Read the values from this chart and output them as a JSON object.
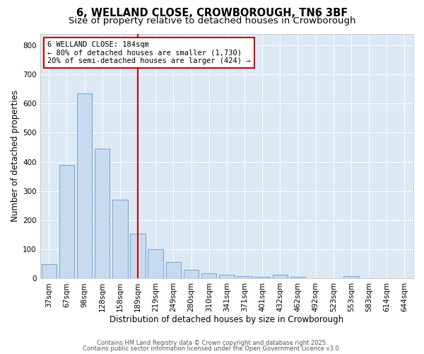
{
  "title": "6, WELLAND CLOSE, CROWBOROUGH, TN6 3BF",
  "subtitle": "Size of property relative to detached houses in Crowborough",
  "xlabel": "Distribution of detached houses by size in Crowborough",
  "ylabel": "Number of detached properties",
  "categories": [
    "37sqm",
    "67sqm",
    "98sqm",
    "128sqm",
    "158sqm",
    "189sqm",
    "219sqm",
    "249sqm",
    "280sqm",
    "310sqm",
    "341sqm",
    "371sqm",
    "401sqm",
    "432sqm",
    "462sqm",
    "492sqm",
    "523sqm",
    "553sqm",
    "583sqm",
    "614sqm",
    "644sqm"
  ],
  "values": [
    50,
    390,
    635,
    445,
    270,
    155,
    100,
    57,
    30,
    18,
    12,
    7,
    5,
    12,
    5,
    0,
    0,
    7,
    0,
    0,
    0
  ],
  "bar_color": "#c8daef",
  "bar_edge_color": "#7aadd4",
  "vline_index": 5,
  "vline_color": "#cc0000",
  "annotation_title": "6 WELLAND CLOSE: 184sqm",
  "annotation_line1": "← 80% of detached houses are smaller (1,730)",
  "annotation_line2": "20% of semi-detached houses are larger (424) →",
  "annotation_box_color": "#cc0000",
  "ylim": [
    0,
    840
  ],
  "yticks": [
    0,
    100,
    200,
    300,
    400,
    500,
    600,
    700,
    800
  ],
  "plot_bg_color": "#dce9f5",
  "footer_line1": "Contains HM Land Registry data © Crown copyright and database right 2025.",
  "footer_line2": "Contains public sector information licensed under the Open Government Licence v3.0.",
  "title_fontsize": 10.5,
  "subtitle_fontsize": 9.5,
  "xlabel_fontsize": 8.5,
  "ylabel_fontsize": 8.5,
  "tick_fontsize": 7.5,
  "annot_fontsize": 7.5,
  "footer_fontsize": 6.0
}
